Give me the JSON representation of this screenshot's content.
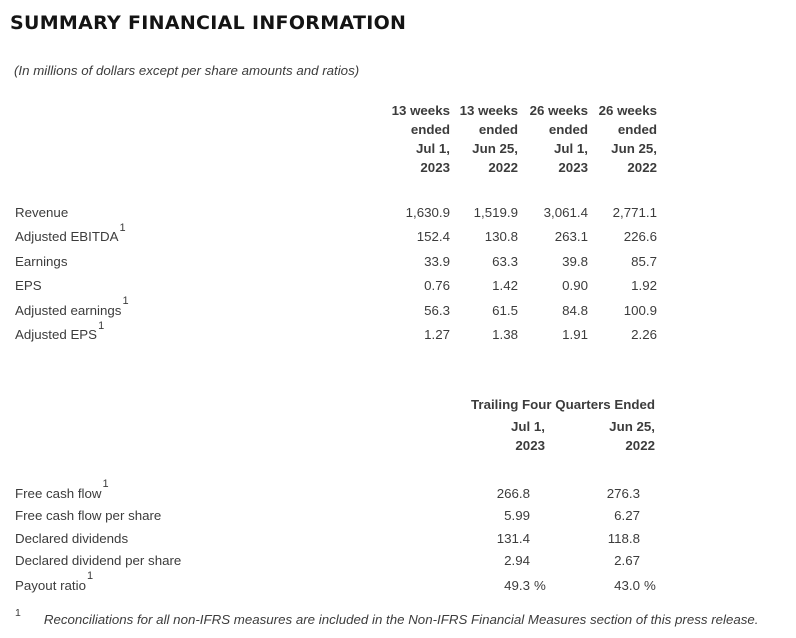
{
  "page": {
    "title": "SUMMARY FINANCIAL INFORMATION",
    "subtitle": "(In millions of dollars except per share amounts and ratios)"
  },
  "quarterly_table": {
    "columns": [
      {
        "lines": [
          "13 weeks",
          "ended",
          "Jul 1,",
          "2023"
        ]
      },
      {
        "lines": [
          "13 weeks",
          "ended",
          "Jun 25,",
          "2022"
        ]
      },
      {
        "lines": [
          "26 weeks",
          "ended",
          "Jul 1,",
          "2023"
        ]
      },
      {
        "lines": [
          "26 weeks",
          "ended",
          "Jun 25,",
          "2022"
        ]
      }
    ],
    "rows": [
      {
        "label": "Revenue",
        "footnote": false,
        "values": [
          "1,630.9",
          "1,519.9",
          "3,061.4",
          "2,771.1"
        ]
      },
      {
        "label": "Adjusted EBITDA",
        "footnote": true,
        "values": [
          "152.4",
          "130.8",
          "263.1",
          "226.6"
        ]
      },
      {
        "label": "Earnings",
        "footnote": false,
        "values": [
          "33.9",
          "63.3",
          "39.8",
          "85.7"
        ]
      },
      {
        "label": "EPS",
        "footnote": false,
        "values": [
          "0.76",
          "1.42",
          "0.90",
          "1.92"
        ]
      },
      {
        "label": "Adjusted earnings",
        "footnote": true,
        "values": [
          "56.3",
          "61.5",
          "84.8",
          "100.9"
        ]
      },
      {
        "label": "Adjusted EPS",
        "footnote": true,
        "values": [
          "1.27",
          "1.38",
          "1.91",
          "2.26"
        ]
      }
    ]
  },
  "trailing_table": {
    "group_header": "Trailing Four Quarters Ended",
    "columns": [
      {
        "lines": [
          "Jul 1,",
          "2023"
        ]
      },
      {
        "lines": [
          "Jun 25,",
          "2022"
        ]
      }
    ],
    "rows": [
      {
        "label": "Free cash flow",
        "footnote": true,
        "suffix": "",
        "values": [
          "266.8",
          "276.3"
        ]
      },
      {
        "label": "Free cash flow per share",
        "footnote": false,
        "suffix": "",
        "values": [
          "5.99",
          "6.27"
        ]
      },
      {
        "label": "Declared dividends",
        "footnote": false,
        "suffix": "",
        "values": [
          "131.4",
          "118.8"
        ]
      },
      {
        "label": "Declared dividend per share",
        "footnote": false,
        "suffix": "",
        "values": [
          "2.94",
          "2.67"
        ]
      },
      {
        "label": "Payout ratio",
        "footnote": true,
        "suffix": "%",
        "values": [
          "49.3",
          "43.0"
        ]
      }
    ]
  },
  "footnote": {
    "marker": "1",
    "text": "Reconciliations for all non-IFRS measures are included in the Non-IFRS Financial Measures section of this press release."
  },
  "colors": {
    "background": "#ffffff",
    "text": "#3c3c3c",
    "title": "#141414"
  }
}
